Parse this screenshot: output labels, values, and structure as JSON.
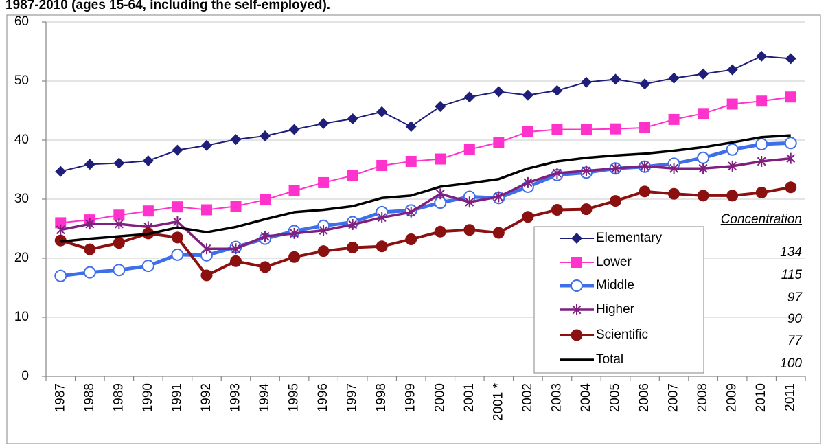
{
  "chart_data": {
    "type": "line",
    "title": "1987-2010 (ages 15-64, including the self-employed).",
    "categories": [
      "1987",
      "1988",
      "1989",
      "1990",
      "1991",
      "1992",
      "1993",
      "1994",
      "1995",
      "1996",
      "1997",
      "1998",
      "1999",
      "2000",
      "2001",
      "2001 *",
      "2002",
      "2003",
      "2004",
      "2005",
      "2006",
      "2007",
      "2008",
      "2009",
      "2010",
      "2011"
    ],
    "ylim": [
      0,
      60
    ],
    "yticks": [
      0,
      10,
      20,
      30,
      40,
      50,
      60
    ],
    "grid": true,
    "legend_title": "Concentration",
    "series": [
      {
        "name": "Elementary",
        "color": "#1f1f7a",
        "marker": "diamond",
        "concentration": 134,
        "values": [
          34.7,
          35.9,
          36.1,
          36.5,
          38.3,
          39.1,
          40.1,
          40.7,
          41.8,
          42.8,
          43.6,
          44.8,
          42.3,
          45.7,
          47.3,
          48.2,
          47.6,
          48.4,
          49.8,
          50.3,
          49.5,
          50.5,
          51.2,
          51.9,
          54.2,
          53.8
        ]
      },
      {
        "name": "Lower",
        "color": "#ff33cc",
        "marker": "square",
        "concentration": 115,
        "values": [
          26.0,
          26.5,
          27.3,
          28.0,
          28.7,
          28.2,
          28.8,
          29.9,
          31.4,
          32.8,
          34.0,
          35.7,
          36.4,
          36.8,
          38.4,
          39.6,
          41.4,
          41.8,
          41.8,
          41.9,
          42.1,
          43.5,
          44.5,
          46.1,
          46.6,
          47.3
        ]
      },
      {
        "name": "Middle",
        "color": "#3f6fe8",
        "marker": "open-circle",
        "concentration": 97,
        "values": [
          17.0,
          17.6,
          18.0,
          18.7,
          20.6,
          20.5,
          21.9,
          23.3,
          24.6,
          25.5,
          26.1,
          27.8,
          28.1,
          29.4,
          30.4,
          30.2,
          32.1,
          34.1,
          34.5,
          35.2,
          35.5,
          36.0,
          37.0,
          38.4,
          39.3,
          39.5
        ]
      },
      {
        "name": "Higher",
        "color": "#7f1f7f",
        "marker": "star",
        "concentration": 90,
        "values": [
          24.8,
          25.8,
          25.8,
          25.3,
          26.2,
          21.6,
          21.6,
          23.7,
          24.2,
          24.7,
          25.7,
          26.9,
          27.8,
          30.9,
          29.5,
          30.4,
          32.8,
          34.4,
          34.8,
          35.2,
          35.6,
          35.2,
          35.2,
          35.6,
          36.4,
          36.9
        ]
      },
      {
        "name": "Scientific",
        "color": "#8b1010",
        "marker": "circle",
        "concentration": 77,
        "values": [
          23.0,
          21.5,
          22.6,
          24.2,
          23.5,
          17.1,
          19.5,
          18.5,
          20.2,
          21.2,
          21.8,
          22.0,
          23.2,
          24.5,
          24.8,
          24.3,
          27.0,
          28.2,
          28.3,
          29.7,
          31.3,
          30.9,
          30.6,
          30.6,
          31.1,
          32.0
        ]
      },
      {
        "name": "Total",
        "color": "#000000",
        "marker": "none",
        "concentration": 100,
        "values": [
          22.8,
          23.3,
          23.7,
          24.1,
          25.2,
          24.4,
          25.3,
          26.6,
          27.8,
          28.2,
          28.8,
          30.2,
          30.6,
          32.1,
          32.7,
          33.4,
          35.2,
          36.4,
          37.0,
          37.4,
          37.7,
          38.2,
          38.8,
          39.6,
          40.5,
          40.8
        ]
      }
    ]
  }
}
